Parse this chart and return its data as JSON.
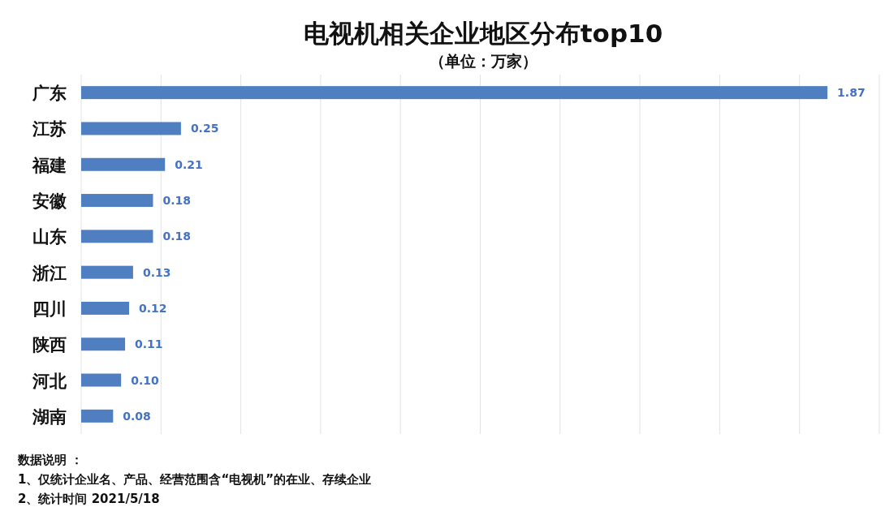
{
  "chart_data": {
    "type": "bar",
    "orientation": "horizontal",
    "title": "电视机相关企业地区分布top10",
    "subtitle": "（单位：万家）",
    "categories": [
      "广东",
      "江苏",
      "福建",
      "安徽",
      "山东",
      "浙江",
      "四川",
      "陕西",
      "河北",
      "湖南"
    ],
    "values": [
      1.87,
      0.25,
      0.21,
      0.18,
      0.18,
      0.13,
      0.12,
      0.11,
      0.1,
      0.08
    ],
    "value_labels": [
      "1.87",
      "0.25",
      "0.21",
      "0.18",
      "0.18",
      "0.13",
      "0.12",
      "0.11",
      "0.10",
      "0.08"
    ],
    "color": "#4f7fc0",
    "xlim": [
      0,
      2
    ],
    "xticks": [
      {
        "value": 0,
        "label": null
      },
      {
        "value": 0.2,
        "label": null
      },
      {
        "value": 0.4,
        "label": null
      },
      {
        "value": 0.6,
        "label": null
      },
      {
        "value": 0.8,
        "label": null
      },
      {
        "value": 1,
        "label": null
      },
      {
        "value": 1.2,
        "label": null
      },
      {
        "value": 1.4,
        "label": null
      },
      {
        "value": 1.6,
        "label": null
      },
      {
        "value": 1.8,
        "label": null
      },
      {
        "value": 2,
        "label": null
      }
    ],
    "grid": "x",
    "tick_labels": "y",
    "annotations": [
      "数据说明 ：",
      "1、仅统计企业名、产品、经营范围含“电视机”的在业、存续企业",
      "2、统计时间 2021/5/18"
    ]
  }
}
